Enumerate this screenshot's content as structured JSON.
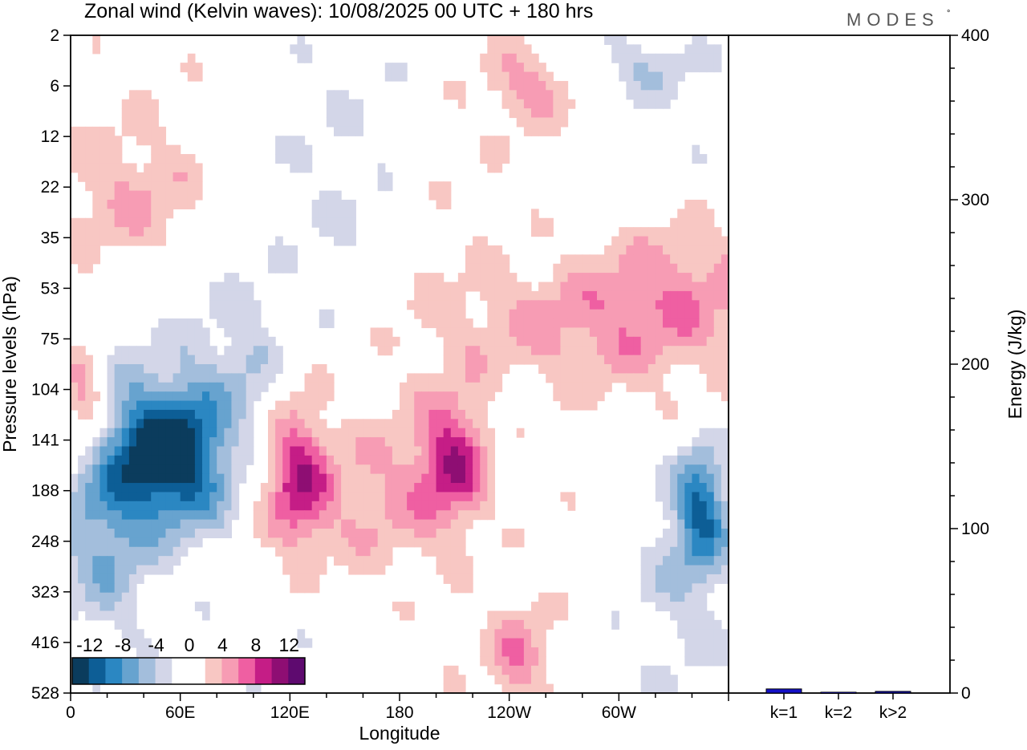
{
  "header": {
    "title": "Zonal wind (Kelvin waves):  10/08/2025  00 UTC  + 180 hrs",
    "brand": "MODES",
    "brand_mark": "°"
  },
  "colors": {
    "neg": [
      "#0b3c5d",
      "#0d5e96",
      "#2b87c2",
      "#67a3cf",
      "#a3bedc",
      "#d3d6e8"
    ],
    "pos": [
      "#f8c7c3",
      "#f79cb4",
      "#ef5fa2",
      "#c51d86",
      "#8e0e73",
      "#5e0a6f"
    ],
    "frame": "#000000",
    "bar": "#1410c8"
  },
  "chart_data": [
    {
      "type": "heatmap",
      "title": "Zonal wind (Kelvin waves):  10/08/2025  00 UTC  + 180 hrs",
      "xlabel": "Longitude",
      "ylabel": "Pressure levels (hPa)",
      "x_ticks": [
        "0",
        "60E",
        "120E",
        "180",
        "120W",
        "60W"
      ],
      "x_range": [
        0,
        360
      ],
      "y_ticks": [
        "2",
        "6",
        "12",
        "22",
        "35",
        "53",
        "75",
        "104",
        "141",
        "188",
        "248",
        "323",
        "416",
        "528"
      ],
      "colorbar": {
        "labels": [
          "-12",
          "-8",
          "-4",
          "0",
          "4",
          "8",
          "12"
        ],
        "levels": [
          -14,
          -12,
          -10,
          -8,
          -6,
          -4,
          -2,
          0,
          2,
          4,
          6,
          8,
          10,
          12,
          14
        ]
      },
      "features": [
        {
          "name": "negative core lower stratosphere",
          "lon": 52,
          "level_index": 8.3,
          "value": -13
        },
        {
          "name": "negative core dateline lower",
          "lon": 345,
          "level_index": 9.3,
          "value": -9
        },
        {
          "name": "positive core 120E",
          "lon": 124,
          "level_index": 8.8,
          "value": 8
        },
        {
          "name": "positive core 160W",
          "lon": 210,
          "level_index": 8.4,
          "value": 9
        },
        {
          "name": "positive core 0E",
          "lon": 7,
          "level_index": 7.3,
          "value": 8
        },
        {
          "name": "positive band upper tilt",
          "lon": 270,
          "level_index": 5.8,
          "value": 5
        },
        {
          "name": "positive core near surface",
          "lon": 245,
          "level_index": 12.3,
          "value": 5
        }
      ]
    },
    {
      "type": "bar",
      "categories": [
        "k=1",
        "k=2",
        "k>2"
      ],
      "values": [
        2.5,
        0.5,
        1.0
      ],
      "ylabel": "Energy (J/kg)",
      "y_ticks": [
        "0",
        "100",
        "200",
        "300",
        "400"
      ],
      "ylim": [
        0,
        400
      ]
    }
  ]
}
